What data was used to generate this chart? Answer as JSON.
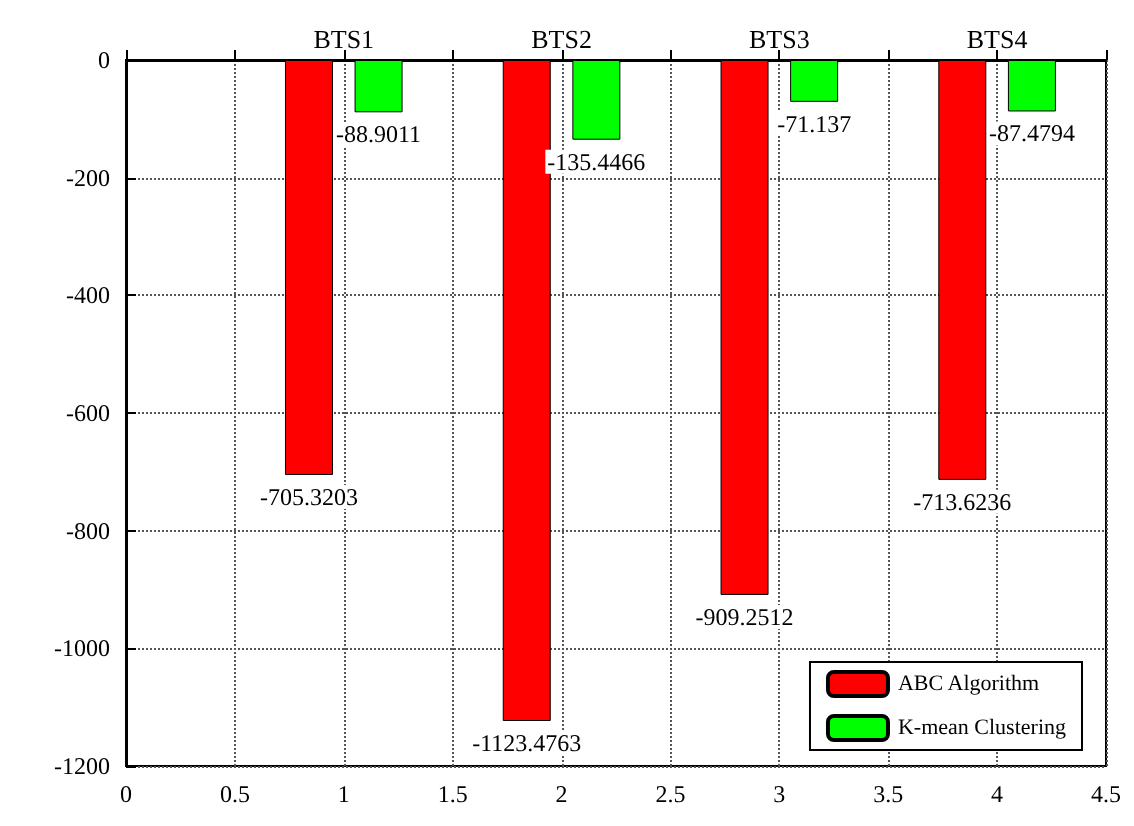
{
  "chart_data": {
    "type": "bar",
    "x": [
      1,
      2,
      3,
      4
    ],
    "series": [
      {
        "name": "ABC Algorithm",
        "color": "#ff0000",
        "values": [
          -705.3203,
          -1123.4763,
          -909.2512,
          -713.6236
        ]
      },
      {
        "name": "K-mean Clustering",
        "color": "#00ff00",
        "values": [
          -88.9011,
          -135.4466,
          -71.137,
          -87.4794
        ]
      }
    ],
    "annotations": [
      "BTS1",
      "BTS2",
      "BTS3",
      "BTS4"
    ],
    "xlim": [
      0,
      4.5
    ],
    "xticks": [
      0,
      0.5,
      1,
      1.5,
      2,
      2.5,
      3,
      3.5,
      4,
      4.5
    ],
    "ylim": [
      -1200,
      0
    ],
    "yticks": [
      -1200,
      -1000,
      -800,
      -600,
      -400,
      -200,
      0
    ],
    "data_labels": true,
    "grid": true,
    "legend": "bottom right"
  }
}
